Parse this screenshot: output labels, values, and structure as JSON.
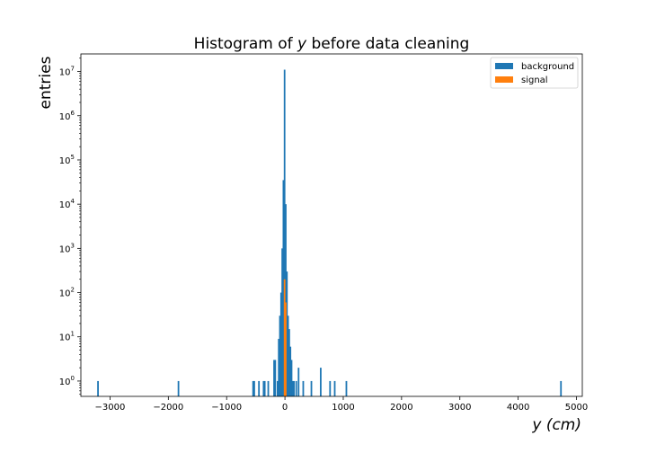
{
  "chart_data": {
    "type": "bar",
    "title": "Histogram of y before data cleaning",
    "title_parts": [
      "Histogram of ",
      "y",
      " before data cleaning"
    ],
    "xlabel": "y (cm)",
    "ylabel": "entries",
    "y_scale": "log",
    "xlim": [
      -3500,
      5100
    ],
    "ylim": [
      0.45,
      25000000
    ],
    "bin_width": 20,
    "x_ticks": [
      -3000,
      -2000,
      -1000,
      0,
      1000,
      2000,
      3000,
      4000,
      5000
    ],
    "x_tick_labels": [
      "−3000",
      "−2000",
      "−1000",
      "0",
      "1000",
      "2000",
      "3000",
      "4000",
      "5000"
    ],
    "y_ticks": [
      1,
      10,
      100,
      1000,
      10000,
      100000,
      1000000,
      10000000
    ],
    "y_tick_labels": [
      {
        "base": "10",
        "exp": "0"
      },
      {
        "base": "10",
        "exp": "1"
      },
      {
        "base": "10",
        "exp": "2"
      },
      {
        "base": "10",
        "exp": "3"
      },
      {
        "base": "10",
        "exp": "4"
      },
      {
        "base": "10",
        "exp": "5"
      },
      {
        "base": "10",
        "exp": "6"
      },
      {
        "base": "10",
        "exp": "7"
      }
    ],
    "grid": false,
    "legend_position": "top-right",
    "series": [
      {
        "name": "background",
        "color": "#1f77b4",
        "bins": [
          {
            "x": -3220,
            "count": 1
          },
          {
            "x": -1840,
            "count": 1
          },
          {
            "x": -560,
            "count": 1
          },
          {
            "x": -540,
            "count": 1
          },
          {
            "x": -460,
            "count": 1
          },
          {
            "x": -380,
            "count": 1
          },
          {
            "x": -360,
            "count": 1
          },
          {
            "x": -300,
            "count": 1
          },
          {
            "x": -200,
            "count": 3
          },
          {
            "x": -180,
            "count": 3
          },
          {
            "x": -140,
            "count": 1
          },
          {
            "x": -120,
            "count": 9
          },
          {
            "x": -100,
            "count": 30
          },
          {
            "x": -80,
            "count": 100
          },
          {
            "x": -60,
            "count": 1000
          },
          {
            "x": -40,
            "count": 35000
          },
          {
            "x": -20,
            "count": 11000000
          },
          {
            "x": 0,
            "count": 10000
          },
          {
            "x": 20,
            "count": 300
          },
          {
            "x": 40,
            "count": 30
          },
          {
            "x": 60,
            "count": 15
          },
          {
            "x": 80,
            "count": 6
          },
          {
            "x": 100,
            "count": 3
          },
          {
            "x": 120,
            "count": 1
          },
          {
            "x": 140,
            "count": 1
          },
          {
            "x": 180,
            "count": 1
          },
          {
            "x": 220,
            "count": 2
          },
          {
            "x": 300,
            "count": 1
          },
          {
            "x": 440,
            "count": 1
          },
          {
            "x": 600,
            "count": 2
          },
          {
            "x": 760,
            "count": 1
          },
          {
            "x": 840,
            "count": 1
          },
          {
            "x": 1040,
            "count": 1
          },
          {
            "x": 4720,
            "count": 1
          }
        ]
      },
      {
        "name": "signal",
        "color": "#ff7f0e",
        "bins": [
          {
            "x": -20,
            "count": 200
          },
          {
            "x": 0,
            "count": 60
          }
        ]
      }
    ]
  }
}
